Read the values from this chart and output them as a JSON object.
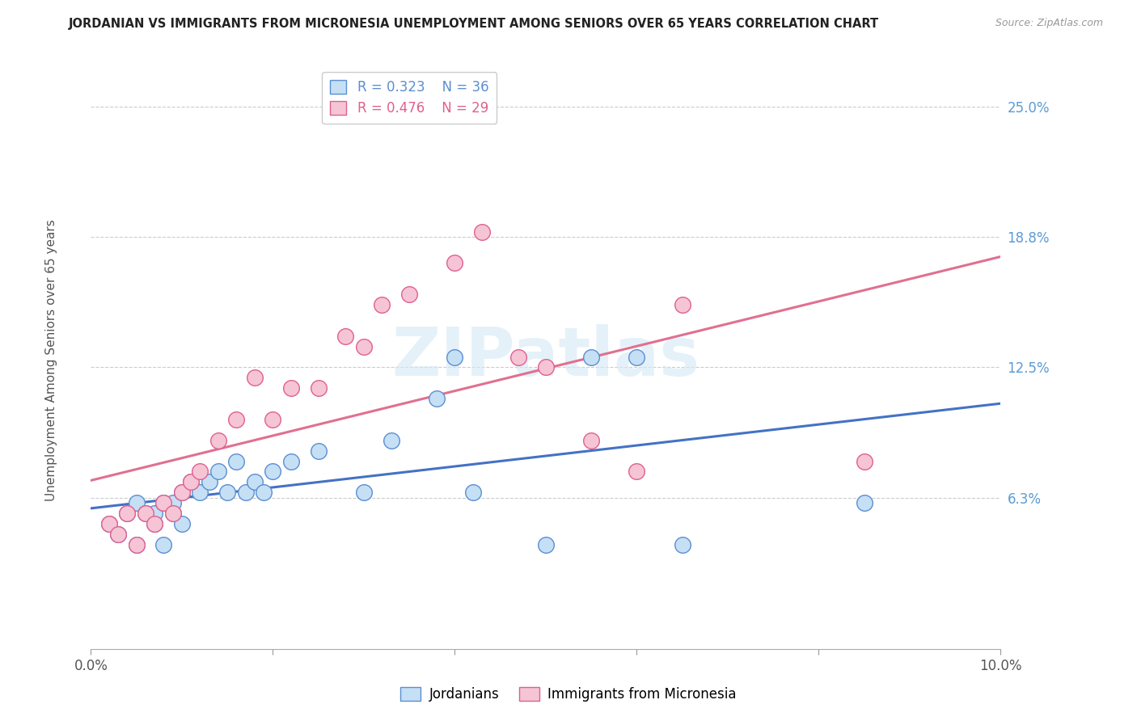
{
  "title": "JORDANIAN VS IMMIGRANTS FROM MICRONESIA UNEMPLOYMENT AMONG SENIORS OVER 65 YEARS CORRELATION CHART",
  "source": "Source: ZipAtlas.com",
  "ylabel": "Unemployment Among Seniors over 65 years",
  "yticks": [
    0.0,
    0.0625,
    0.125,
    0.1875,
    0.25
  ],
  "ytick_labels": [
    "",
    "6.3%",
    "12.5%",
    "18.8%",
    "25.0%"
  ],
  "xlim": [
    0.0,
    0.1
  ],
  "ylim": [
    -0.01,
    0.27
  ],
  "legend_jordanians": {
    "R": 0.323,
    "N": 36
  },
  "legend_micronesia": {
    "R": 0.476,
    "N": 29
  },
  "color_jordanians": "#C5DFF5",
  "color_micronesia": "#F5C5D5",
  "edge_jordanians": "#5B8FD0",
  "edge_micronesia": "#E06090",
  "line_jordanians": "#4472C4",
  "line_micronesia": "#E07090",
  "watermark": "ZIPatlas",
  "jordanians_x": [
    0.002,
    0.003,
    0.004,
    0.005,
    0.005,
    0.006,
    0.007,
    0.007,
    0.008,
    0.008,
    0.009,
    0.009,
    0.01,
    0.01,
    0.011,
    0.012,
    0.013,
    0.014,
    0.015,
    0.016,
    0.017,
    0.018,
    0.019,
    0.02,
    0.022,
    0.025,
    0.03,
    0.033,
    0.038,
    0.04,
    0.042,
    0.05,
    0.055,
    0.06,
    0.065,
    0.085
  ],
  "jordanians_y": [
    0.05,
    0.045,
    0.055,
    0.04,
    0.06,
    0.055,
    0.05,
    0.055,
    0.04,
    0.06,
    0.055,
    0.06,
    0.05,
    0.065,
    0.07,
    0.065,
    0.07,
    0.075,
    0.065,
    0.08,
    0.065,
    0.07,
    0.065,
    0.075,
    0.08,
    0.085,
    0.065,
    0.09,
    0.11,
    0.13,
    0.065,
    0.04,
    0.13,
    0.13,
    0.04,
    0.06
  ],
  "micronesia_x": [
    0.002,
    0.003,
    0.004,
    0.005,
    0.006,
    0.007,
    0.008,
    0.009,
    0.01,
    0.011,
    0.012,
    0.014,
    0.016,
    0.018,
    0.02,
    0.022,
    0.025,
    0.028,
    0.03,
    0.032,
    0.035,
    0.04,
    0.043,
    0.047,
    0.05,
    0.055,
    0.06,
    0.065,
    0.085
  ],
  "micronesia_y": [
    0.05,
    0.045,
    0.055,
    0.04,
    0.055,
    0.05,
    0.06,
    0.055,
    0.065,
    0.07,
    0.075,
    0.09,
    0.1,
    0.12,
    0.1,
    0.115,
    0.115,
    0.14,
    0.135,
    0.155,
    0.16,
    0.175,
    0.19,
    0.13,
    0.125,
    0.09,
    0.075,
    0.155,
    0.08
  ]
}
